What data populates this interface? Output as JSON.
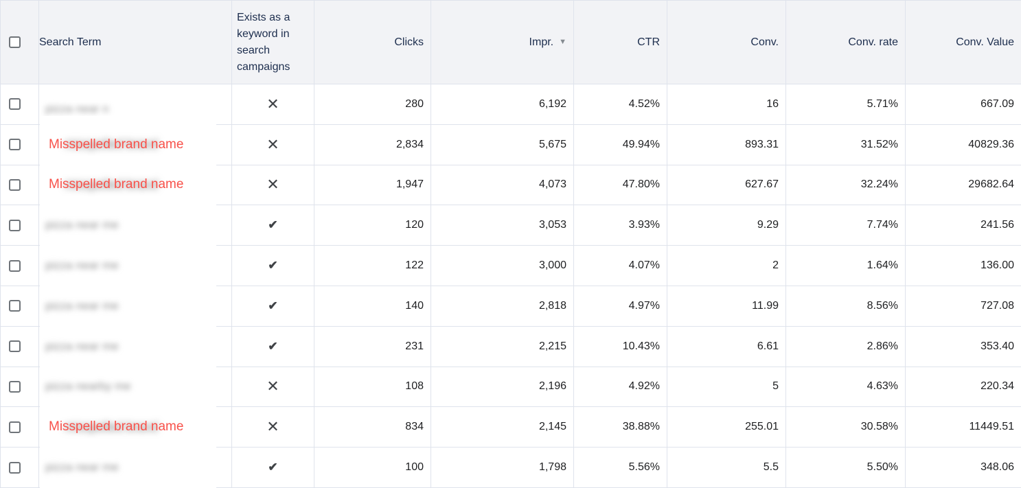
{
  "table": {
    "columns": {
      "search_term": "Search Term",
      "exists_keyword": "Exists as a keyword in search campaigns",
      "clicks": "Clicks",
      "impr": "Impr.",
      "ctr": "CTR",
      "conv": "Conv.",
      "conv_rate": "Conv. rate",
      "conv_value": "Conv. Value"
    },
    "sort": {
      "column": "impr",
      "direction": "desc"
    },
    "icons": {
      "check": "✔",
      "x": "✕",
      "sort_desc": "▼"
    },
    "colors": {
      "header_bg": "#f2f3f6",
      "header_text": "#1c2d4d",
      "grid_line": "#dfe3ec",
      "body_text": "#1d1e20",
      "overlay_red": "#f8514a",
      "icon_gray": "#3f4246"
    },
    "rows": [
      {
        "masked_text": "pizza near n",
        "overlay_label": null,
        "exists": false,
        "clicks": "280",
        "impr": "6,192",
        "ctr": "4.52%",
        "conv": "16",
        "conv_rate": "5.71%",
        "conv_value": "667.09"
      },
      {
        "masked_text": "misspelled brand",
        "overlay_label": "Misspelled brand name",
        "exists": false,
        "clicks": "2,834",
        "impr": "5,675",
        "ctr": "49.94%",
        "conv": "893.31",
        "conv_rate": "31.52%",
        "conv_value": "40829.36"
      },
      {
        "masked_text": "misspelled brand",
        "overlay_label": "Misspelled brand name",
        "exists": false,
        "clicks": "1,947",
        "impr": "4,073",
        "ctr": "47.80%",
        "conv": "627.67",
        "conv_rate": "32.24%",
        "conv_value": "29682.64"
      },
      {
        "masked_text": "pizza near me",
        "overlay_label": null,
        "exists": true,
        "clicks": "120",
        "impr": "3,053",
        "ctr": "3.93%",
        "conv": "9.29",
        "conv_rate": "7.74%",
        "conv_value": "241.56"
      },
      {
        "masked_text": "pizza near me",
        "overlay_label": null,
        "exists": true,
        "clicks": "122",
        "impr": "3,000",
        "ctr": "4.07%",
        "conv": "2",
        "conv_rate": "1.64%",
        "conv_value": "136.00"
      },
      {
        "masked_text": "pizza near me",
        "overlay_label": null,
        "exists": true,
        "clicks": "140",
        "impr": "2,818",
        "ctr": "4.97%",
        "conv": "11.99",
        "conv_rate": "8.56%",
        "conv_value": "727.08"
      },
      {
        "masked_text": "pizza near me",
        "overlay_label": null,
        "exists": true,
        "clicks": "231",
        "impr": "2,215",
        "ctr": "10.43%",
        "conv": "6.61",
        "conv_rate": "2.86%",
        "conv_value": "353.40"
      },
      {
        "masked_text": "pizza nearby me",
        "overlay_label": null,
        "exists": false,
        "clicks": "108",
        "impr": "2,196",
        "ctr": "4.92%",
        "conv": "5",
        "conv_rate": "4.63%",
        "conv_value": "220.34"
      },
      {
        "masked_text": "misspelled brand",
        "overlay_label": "Misspelled brand name",
        "exists": false,
        "clicks": "834",
        "impr": "2,145",
        "ctr": "38.88%",
        "conv": "255.01",
        "conv_rate": "30.58%",
        "conv_value": "11449.51"
      },
      {
        "masked_text": "pizza near me",
        "overlay_label": null,
        "exists": true,
        "clicks": "100",
        "impr": "1,798",
        "ctr": "5.56%",
        "conv": "5.5",
        "conv_rate": "5.50%",
        "conv_value": "348.06"
      }
    ]
  }
}
